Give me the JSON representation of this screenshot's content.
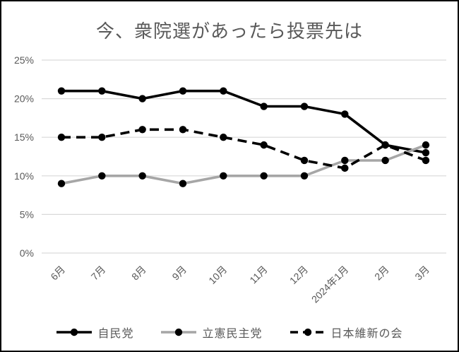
{
  "chart_data": {
    "type": "line",
    "title": "今、衆院選があったら投票先は",
    "categories": [
      "6月",
      "7月",
      "8月",
      "9月",
      "10月",
      "11月",
      "12月",
      "2024年1月",
      "2月",
      "3月"
    ],
    "series": [
      {
        "name": "自民党",
        "values": [
          21,
          21,
          20,
          21,
          21,
          19,
          19,
          18,
          14,
          13
        ],
        "color": "#000000",
        "style": "solid",
        "marker_color": "#000000"
      },
      {
        "name": "立憲民主党",
        "values": [
          9,
          10,
          10,
          9,
          10,
          10,
          10,
          12,
          12,
          14
        ],
        "color": "#a6a6a6",
        "style": "solid",
        "marker_color": "#000000"
      },
      {
        "name": "日本維新の会",
        "values": [
          15,
          15,
          16,
          16,
          15,
          14,
          12,
          11,
          14,
          12
        ],
        "color": "#000000",
        "style": "dashed",
        "marker_color": "#000000"
      }
    ],
    "y_ticks": [
      "0%",
      "5%",
      "10%",
      "15%",
      "20%",
      "25%"
    ],
    "y_tick_values": [
      0,
      5,
      10,
      15,
      20,
      25
    ],
    "ylim": [
      0,
      25
    ],
    "grid": true,
    "legend_position": "bottom",
    "colors": {
      "grid": "#d9d9d9",
      "tick_label": "#595959",
      "title": "#595959",
      "background": "#ffffff",
      "frame_border": "#000000"
    }
  }
}
